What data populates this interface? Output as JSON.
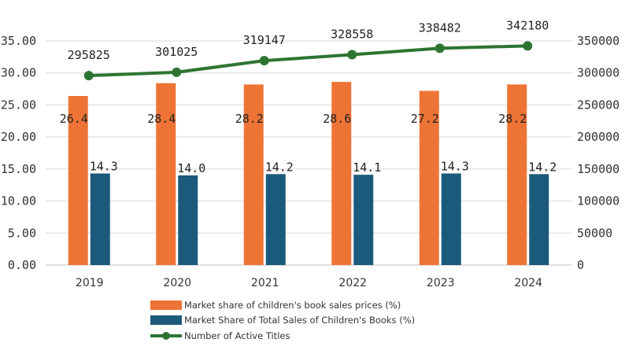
{
  "chart_data": {
    "type": "bar",
    "categories": [
      "2019",
      "2020",
      "2021",
      "2022",
      "2023",
      "2024"
    ],
    "y_left": {
      "range": [
        0,
        35
      ],
      "ticks": [
        "0.00",
        "5.00",
        "10.00",
        "15.00",
        "20.00",
        "25.00",
        "30.00",
        "35.00"
      ]
    },
    "y_right": {
      "range": [
        0,
        350000
      ],
      "ticks": [
        "0",
        "50000",
        "100000",
        "150000",
        "200000",
        "250000",
        "300000",
        "350000"
      ]
    },
    "grid": true,
    "legend_position": "bottom-center",
    "series": [
      {
        "name": "Market share of children's book sales prices (%)",
        "type": "bar",
        "axis": "left",
        "color": "#EE7436",
        "values": [
          26.4,
          28.4,
          28.2,
          28.6,
          27.2,
          28.2
        ],
        "labels": [
          "26.4",
          "28.4",
          "28.2",
          "28.6",
          "27.2",
          "28.2"
        ]
      },
      {
        "name": "Market Share of Total Sales of Children's Books (%)",
        "type": "bar",
        "axis": "left",
        "color": "#1B5A7A",
        "values": [
          14.3,
          14.0,
          14.2,
          14.1,
          14.3,
          14.2
        ],
        "labels": [
          "14.3",
          "14.0",
          "14.2",
          "14.1",
          "14.3",
          "14.2"
        ]
      },
      {
        "name": "Number of Active Titles",
        "type": "line",
        "axis": "right",
        "color": "#2E7431",
        "values": [
          295825,
          301025,
          319147,
          328558,
          338482,
          342180
        ],
        "labels": [
          "295825",
          "301025",
          "319147",
          "328558",
          "338482",
          "342180"
        ]
      }
    ]
  }
}
